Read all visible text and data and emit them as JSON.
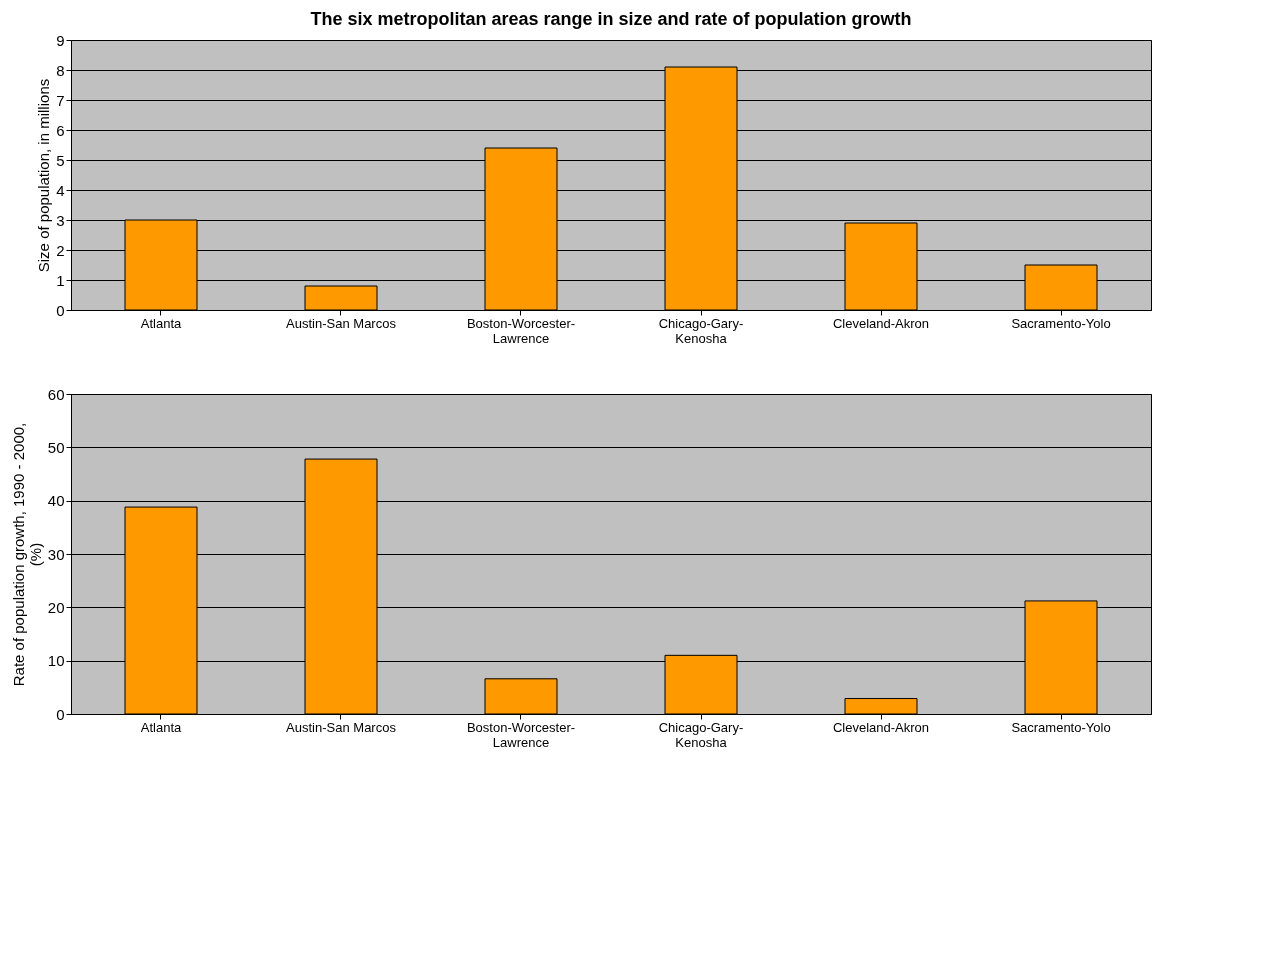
{
  "chart_data": [
    {
      "type": "bar",
      "title": "The six metropolitan areas range in size and rate of population growth",
      "ylabel": "Size of population, in millions",
      "categories": [
        "Atlanta",
        "Austin-San Marcos",
        "Boston-Worcester-\nLawrence",
        "Chicago-Gary-\nKenosha",
        "Cleveland-Akron",
        "Sacramento-Yolo"
      ],
      "values": [
        3.0,
        0.8,
        5.4,
        8.1,
        2.9,
        1.5
      ],
      "color": "#ff9900",
      "ylim": [
        0,
        9
      ],
      "yticks": [
        0,
        1,
        2,
        3,
        4,
        5,
        6,
        7,
        8,
        9
      ],
      "grid": "y",
      "legend": false
    },
    {
      "type": "bar",
      "ylabel": "Rate of population growth, 1990 - 2000,\n(%)",
      "categories": [
        "Atlanta",
        "Austin-San Marcos",
        "Boston-Worcester-\nLawrence",
        "Chicago-Gary-\nKenosha",
        "Cleveland-Akron",
        "Sacramento-Yolo"
      ],
      "values": [
        38.8,
        47.8,
        6.6,
        11.0,
        2.9,
        21.2
      ],
      "color": "#ff9900",
      "ylim": [
        0,
        60
      ],
      "yticks": [
        0,
        10,
        20,
        30,
        40,
        50,
        60
      ],
      "grid": "y",
      "legend": false
    }
  ]
}
